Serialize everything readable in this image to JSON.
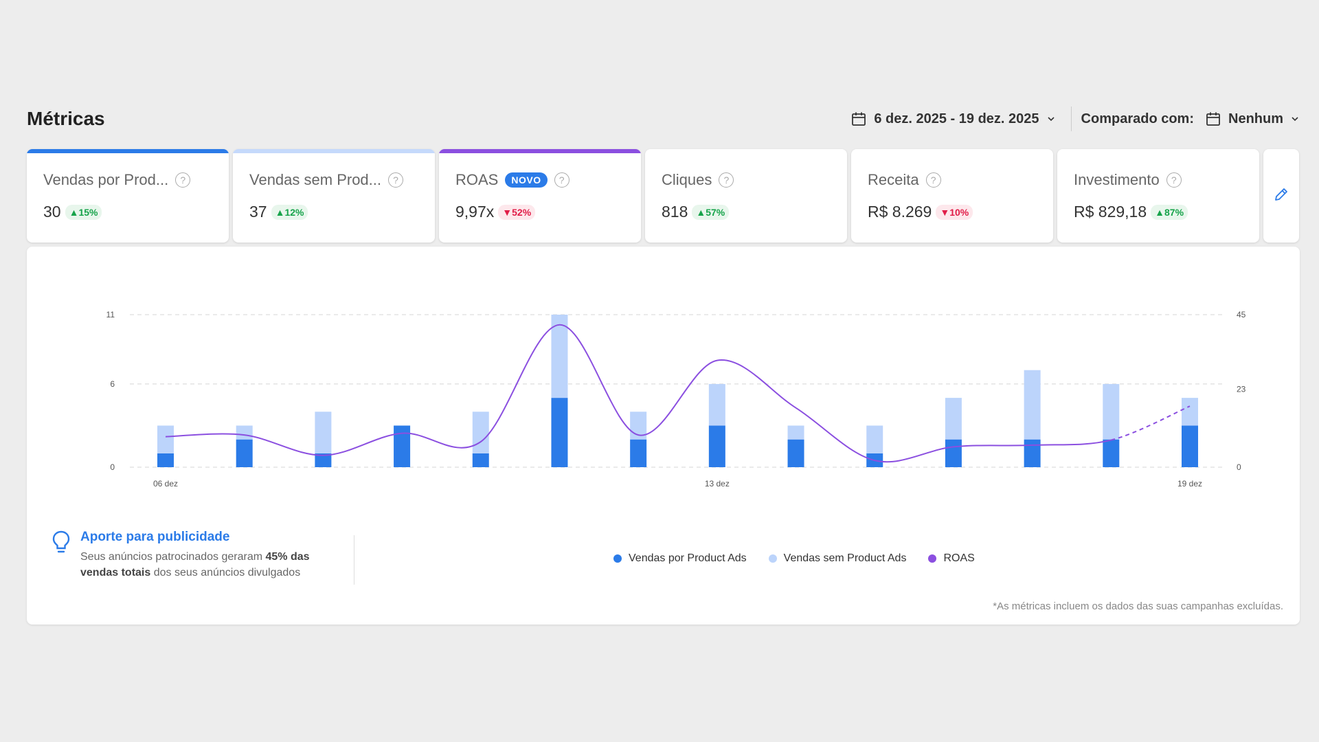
{
  "header": {
    "title": "Métricas",
    "date_range": "6 dez. 2025 - 19 dez. 2025",
    "compare_label": "Comparado com:",
    "compare_value": "Nenhum"
  },
  "cards": [
    {
      "title": "Vendas por Prod...",
      "value": "30",
      "delta": "▲15%",
      "delta_dir": "up",
      "bar_color": "#2b7be8"
    },
    {
      "title": "Vendas sem Prod...",
      "value": "37",
      "delta": "▲12%",
      "delta_dir": "up",
      "bar_color": "#c5d9fb"
    },
    {
      "title": "ROAS",
      "badge": "NOVO",
      "value": "9,97x",
      "delta": "▼52%",
      "delta_dir": "down",
      "bar_color": "#8b4fe0"
    },
    {
      "title": "Cliques",
      "value": "818",
      "delta": "▲57%",
      "delta_dir": "up"
    },
    {
      "title": "Receita",
      "value": "R$ 8.269",
      "delta": "▼10%",
      "delta_dir": "down"
    },
    {
      "title": "Investimento",
      "value": "R$ 829,18",
      "delta": "▲87%",
      "delta_dir": "up"
    }
  ],
  "colors": {
    "with_ads": "#2b7be8",
    "without_ads": "#bcd4fb",
    "roas": "#8b4fe0"
  },
  "icons": {
    "calendar": "calendar-icon",
    "help": "help-circle-icon",
    "edit": "pencil-icon",
    "tip": "lightbulb-icon"
  },
  "tip": {
    "title": "Aporte para publicidade",
    "text_1": "Seus anúncios patrocinados geraram ",
    "bold_1": "45% das vendas totais",
    "text_2": " dos seus anúncios divulgados"
  },
  "footnote": "*As métricas incluem os dados das suas campanhas excluídas.",
  "chart_data": {
    "type": "bar",
    "categories": [
      "06 dez",
      "07 dez",
      "08 dez",
      "09 dez",
      "10 dez",
      "11 dez",
      "12 dez",
      "13 dez",
      "14 dez",
      "15 dez",
      "16 dez",
      "17 dez",
      "18 dez",
      "19 dez"
    ],
    "x_tick_labels": [
      "06 dez",
      "13 dez",
      "19 dez"
    ],
    "stacked": true,
    "series": [
      {
        "name": "Vendas por Product Ads",
        "type": "bar",
        "axis": "left",
        "values": [
          1,
          2,
          1,
          3,
          1,
          5,
          2,
          3,
          2,
          1,
          2,
          2,
          2,
          3
        ]
      },
      {
        "name": "Vendas sem Product Ads",
        "type": "bar",
        "axis": "left",
        "values": [
          2,
          1,
          3,
          0,
          3,
          6,
          2,
          3,
          1,
          2,
          3,
          5,
          4,
          2
        ]
      },
      {
        "name": "ROAS",
        "type": "line",
        "axis": "right",
        "values": [
          9,
          9.5,
          3.5,
          10,
          7.5,
          42,
          9.5,
          31.5,
          17.5,
          2,
          6,
          6.5,
          8,
          18
        ]
      }
    ],
    "y_left": {
      "ticks": [
        0,
        6,
        11
      ],
      "lim": [
        0,
        11
      ]
    },
    "y_right": {
      "ticks": [
        0,
        23,
        45
      ],
      "lim": [
        0,
        45
      ]
    },
    "grid": true,
    "legend_position": "bottom"
  }
}
